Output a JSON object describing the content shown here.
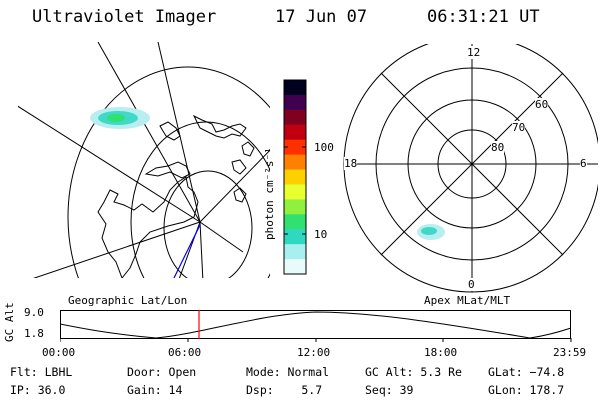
{
  "header": {
    "instrument": "Ultraviolet Imager",
    "date": "17 Jun 07",
    "time": "06:31:21 UT"
  },
  "geo_panel": {
    "caption": "Geographic Lat/Lon"
  },
  "colorbar": {
    "unit_label": "photon cm⁻²s⁻¹",
    "ticks": [
      "100",
      "10"
    ],
    "colors": [
      "#000020",
      "#400050",
      "#800020",
      "#c00010",
      "#ff3000",
      "#ff8000",
      "#ffd000",
      "#e8ff30",
      "#90f040",
      "#30e070",
      "#30d8c0",
      "#a8f0f0",
      "#e8fafa"
    ]
  },
  "polar_panel": {
    "caption": "Apex MLat/MLT",
    "mlt_labels": {
      "top": "12",
      "left": "18",
      "right": "6",
      "bottom": "0"
    },
    "lat_labels": [
      "60",
      "70",
      "80"
    ]
  },
  "altitude_plot": {
    "ylabel": "GC Alt",
    "yticks": [
      "9.0",
      "1.8"
    ],
    "xticks": [
      "00:00",
      "06:00",
      "12:00",
      "18:00",
      "23:59"
    ],
    "current_time_color": "#ff0000"
  },
  "status": {
    "flt": "Flt: LBHL",
    "door": "Door: Open",
    "mode": "Mode: Normal",
    "gc_alt": "GC Alt: 5.3 Re",
    "glat": "GLat: −74.8",
    "ip": "IP: 36.0",
    "gain": "Gain: 14",
    "dsp": "Dsp:    5.7",
    "seq": "Seq: 39",
    "glon": "GLon: 178.7"
  }
}
